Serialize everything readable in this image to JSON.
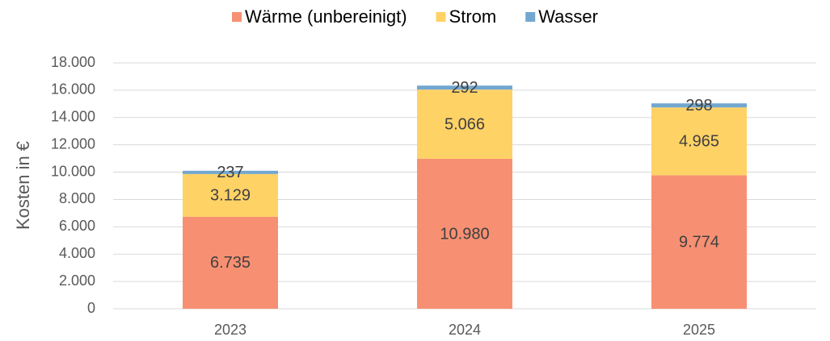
{
  "chart_data": {
    "type": "stacked_bar",
    "y_label": "Kosten in €",
    "categories": [
      "2023",
      "2024",
      "2025"
    ],
    "series": [
      {
        "name": "Wärme (unbereinigt)",
        "color": "#f79072",
        "values": [
          6735,
          10980,
          9774
        ],
        "value_labels": [
          "6.735",
          "10.980",
          "9.774"
        ]
      },
      {
        "name": "Strom",
        "color": "#ffd266",
        "values": [
          3129,
          5066,
          4965
        ],
        "value_labels": [
          "3.129",
          "5.066",
          "4.965"
        ]
      },
      {
        "name": "Wasser",
        "color": "#72a7d0",
        "values": [
          237,
          292,
          298
        ]
      }
    ],
    "ylim": [
      0,
      18000
    ],
    "yticks": [
      {
        "value": 0,
        "label": "0"
      },
      {
        "value": 2000,
        "label": "2.000"
      },
      {
        "value": 4000,
        "label": "4.000"
      },
      {
        "value": 6000,
        "label": "6.000"
      },
      {
        "value": 8000,
        "label": "8.000"
      },
      {
        "value": 10000,
        "label": "10.000"
      },
      {
        "value": 12000,
        "label": "12.000"
      },
      {
        "value": 14000,
        "label": "14.000"
      },
      {
        "value": 16000,
        "label": "16.000"
      },
      {
        "value": 18000,
        "label": "18.000"
      }
    ],
    "grid": true,
    "legend": "top"
  }
}
